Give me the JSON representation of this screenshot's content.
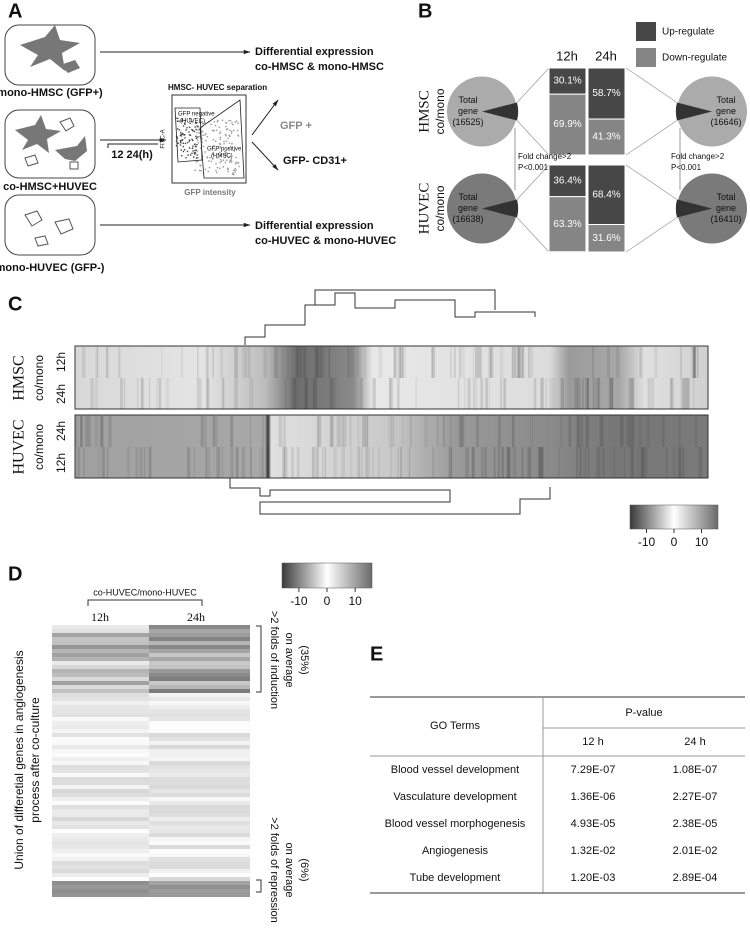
{
  "panel_a": {
    "label": "A",
    "mono_hmsc": "mono-HMSC (GFP+)",
    "co_culture": "co-HMSC+HUVEC",
    "time": "12 24(h)",
    "mono_huvec": "mono-HUVEC (GFP-)",
    "output_top": [
      "Differential expression",
      "co-HMSC & mono-HMSC"
    ],
    "flow": {
      "title": "HMSC- HUVEC separation",
      "y_label": "FITC-A",
      "x_label": "GFP intensity",
      "gate_negative": [
        "GFP negative",
        "(HUVEC)"
      ],
      "gate_positive": [
        "GFP positive",
        "(HMSC)"
      ]
    },
    "gfp_pos": "GFP +",
    "gfp_neg": "GFP- CD31+",
    "output_bottom": [
      "Differential expression",
      "co-HUVEC & mono-HUVEC"
    ]
  },
  "panel_b": {
    "label": "B",
    "legend": [
      {
        "name": "Up-regulate",
        "color": "#474747"
      },
      {
        "name": "Down-regulate",
        "color": "#858585"
      }
    ],
    "columns": [
      "12h",
      "24h"
    ],
    "rows": [
      {
        "cell": "HMSC",
        "ratio": "co/mono",
        "pie_color": "#ababab",
        "pies": [
          [
            "Total",
            "gene",
            "(16525)"
          ],
          [
            "Total",
            "gene",
            "(16646)"
          ]
        ],
        "bars": [
          [
            {
              "value": 30.1,
              "label": "30.1%"
            },
            {
              "value": 69.9,
              "label": "69.9%"
            }
          ],
          [
            {
              "value": 58.7,
              "label": "58.7%"
            },
            {
              "value": 41.3,
              "label": "41.3%"
            }
          ]
        ]
      },
      {
        "cell": "HUVEC",
        "ratio": "co/mono",
        "pie_color": "#7a7a7a",
        "pies": [
          [
            "Total",
            "gene",
            "(16638)"
          ],
          [
            "Total",
            "gene",
            "(16410)"
          ]
        ],
        "bars": [
          [
            {
              "value": 36.4,
              "label": "36.4%"
            },
            {
              "value": 63.3,
              "label": "63.3%"
            }
          ],
          [
            {
              "value": 68.4,
              "label": "68.4%"
            },
            {
              "value": 31.6,
              "label": "31.6%"
            }
          ]
        ]
      }
    ],
    "notes": [
      [
        "Fold change>2",
        "P<0.001"
      ],
      [
        "Fold change>2",
        "P<0.001"
      ]
    ]
  },
  "panel_c": {
    "label": "C",
    "hmsc": {
      "cell": "HMSC",
      "ratio": "co/mono",
      "rows": [
        "12h",
        "24h"
      ]
    },
    "huvec": {
      "cell": "HUVEC",
      "ratio": "co/mono",
      "rows": [
        "24h",
        "12h"
      ]
    },
    "colorbar": {
      "range": [
        -16,
        16
      ],
      "ticks": [
        -10,
        0,
        10
      ]
    }
  },
  "panel_d": {
    "label": "D",
    "group": "co-HUVEC/mono-HUVEC",
    "columns": [
      "12h",
      "24h"
    ],
    "colorbar": {
      "range": [
        -16,
        16
      ],
      "ticks": [
        -10,
        0,
        10
      ]
    },
    "y_label": [
      "Union of differetial genes in angiogenesis",
      "process after co-culture"
    ],
    "induction": [
      ">2 folds of induction",
      "on average",
      "(35%)"
    ],
    "repression": [
      ">2 folds of repression",
      "on average",
      "(6%)"
    ]
  },
  "panel_e": {
    "label": "E",
    "header": {
      "terms": "GO Terms",
      "pvalue": "P-value",
      "columns": [
        "12 h",
        "24 h"
      ]
    },
    "rows": [
      [
        "Blood vessel development",
        "7.29E-07",
        "1.08E-07"
      ],
      [
        "Vasculature development",
        "1.36E-06",
        "2.27E-07"
      ],
      [
        "Blood vessel morphogenesis",
        "4.93E-05",
        "2.38E-05"
      ],
      [
        "Angiogenesis",
        "1.32E-02",
        "2.01E-02"
      ],
      [
        "Tube development",
        "1.20E-03",
        "2.89E-04"
      ]
    ]
  }
}
